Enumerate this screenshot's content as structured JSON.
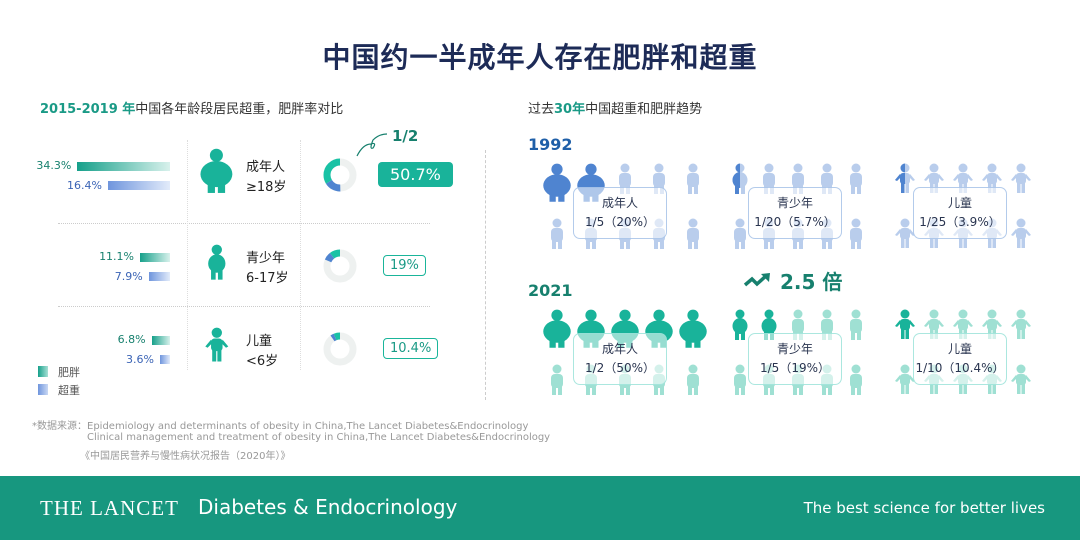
{
  "title": "中国约一半成年人存在肥胖和超重",
  "left": {
    "subtitle_year": "2015-2019 年",
    "subtitle_rest": "中国各年龄段居民超重，肥胖率对比",
    "rows": [
      {
        "group": "成年人",
        "age": "≥18岁",
        "obese": "34.3%",
        "overweight": "16.4%",
        "obese_value": 34.3,
        "overweight_value": 16.4,
        "total": "50.7%",
        "total_value": 50.7
      },
      {
        "group": "青少年",
        "age": "6-17岁",
        "obese": "11.1%",
        "overweight": "7.9%",
        "obese_value": 11.1,
        "overweight_value": 7.9,
        "total": "19%",
        "total_value": 19
      },
      {
        "group": "儿童",
        "age": "<6岁",
        "obese": "6.8%",
        "overweight": "3.6%",
        "obese_value": 6.8,
        "overweight_value": 3.6,
        "total": "10.4%",
        "total_value": 10.4
      }
    ],
    "half_annotation": "1/2",
    "legend": {
      "obese": "肥胖",
      "overweight": "超重"
    }
  },
  "right": {
    "subtitle_pre": "过去",
    "subtitle_num": "30年",
    "subtitle_rest": "中国超重和肥胖趋势",
    "years": [
      {
        "year": "1992",
        "groups": [
          {
            "label": "成年人",
            "value": "1/5（20%）"
          },
          {
            "label": "青少年",
            "value": "1/20（5.7%）"
          },
          {
            "label": "儿童",
            "value": "1/25（3.9%）"
          }
        ]
      },
      {
        "year": "2021",
        "groups": [
          {
            "label": "成年人",
            "value": "1/2（50%）"
          },
          {
            "label": "青少年",
            "value": "1/5（19%）"
          },
          {
            "label": "儿童",
            "value": "1/10（10.4%）"
          }
        ]
      }
    ],
    "increase": "2.5 倍"
  },
  "sources": [
    "*数据来源：Epidemiology and determinants of obesity in China,The Lancet Diabetes&Endocrinology",
    "Clinical management and treatment of obesity in China,The Lancet Diabetes&Endocrinology",
    "《中国居民营养与慢性病状况报告（2020年）》"
  ],
  "footer": {
    "brand_main": "THE LANCET",
    "brand_sub": "Diabetes & Endocrinology",
    "tagline": "The best science for better lives"
  },
  "colors": {
    "teal": "#19b39a",
    "blue": "#4f84d0",
    "navy": "#1d2b57",
    "footer": "#17977f"
  }
}
